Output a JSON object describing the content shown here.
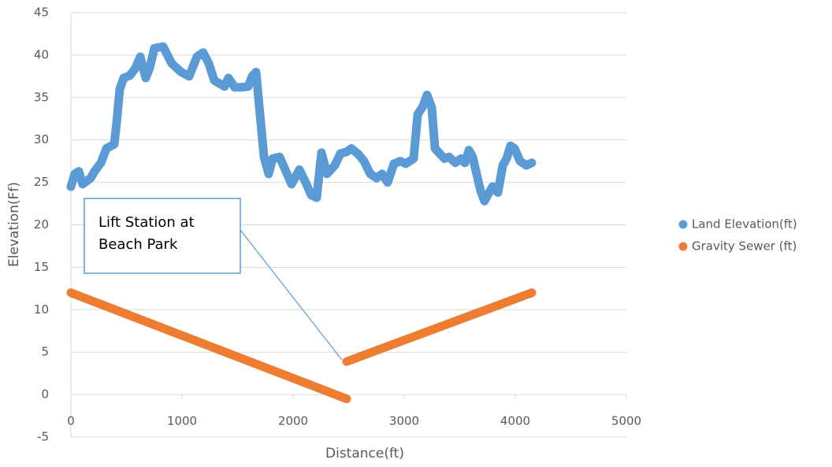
{
  "chart_data": {
    "type": "scatter",
    "x_label": "Distance(ft)",
    "y_label": "Elevation(Ff)",
    "xlim": [
      0,
      5000
    ],
    "xticks": [
      0,
      1000,
      2000,
      3000,
      4000,
      5000
    ],
    "ylim": [
      -5,
      45
    ],
    "yticks": [
      -5,
      0,
      5,
      10,
      15,
      20,
      25,
      30,
      35,
      40,
      45
    ],
    "grid": true,
    "legend": "right",
    "annotation": [
      "Lift Station at",
      "Beach Park"
    ],
    "series": [
      {
        "name": "Land Elevation(ft)",
        "color": "#5b9bd5",
        "x": [
          0,
          35,
          71,
          106,
          177,
          213,
          270,
          319,
          390,
          411,
          440,
          475,
          532,
          582,
          624,
          674,
          709,
          752,
          830,
          908,
          993,
          1064,
          1135,
          1191,
          1241,
          1291,
          1383,
          1418,
          1475,
          1532,
          1596,
          1631,
          1667,
          1702,
          1738,
          1780,
          1816,
          1879,
          1929,
          1986,
          2057,
          2113,
          2163,
          2213,
          2255,
          2305,
          2376,
          2426,
          2482,
          2525,
          2589,
          2638,
          2695,
          2752,
          2801,
          2851,
          2908,
          2965,
          3014,
          3085,
          3121,
          3170,
          3206,
          3248,
          3277,
          3362,
          3404,
          3461,
          3511,
          3546,
          3582,
          3617,
          3652,
          3688,
          3723,
          3794,
          3844,
          3887,
          3922,
          3957,
          3993,
          4043,
          4099,
          4149
        ],
        "values": [
          24.5,
          26,
          26.3,
          24.8,
          25.5,
          26.3,
          27.3,
          29,
          29.5,
          32,
          36,
          37.3,
          37.6,
          38.5,
          39.8,
          37.3,
          38.5,
          40.8,
          41,
          39,
          38,
          37.5,
          39.8,
          40.3,
          39,
          37,
          36.3,
          37.3,
          36.2,
          36.2,
          36.3,
          37.5,
          38,
          33,
          28,
          26,
          27.8,
          28,
          26.5,
          24.8,
          26.5,
          25,
          23.5,
          23.2,
          28.5,
          26,
          27,
          28.4,
          28.6,
          29,
          28.3,
          27.5,
          26,
          25.5,
          26,
          25,
          27.2,
          27.5,
          27.2,
          27.8,
          33,
          34,
          35.3,
          33.8,
          29,
          27.8,
          28,
          27.3,
          27.8,
          27.3,
          28.8,
          28,
          26,
          24,
          22.8,
          24.5,
          23.8,
          27,
          27.8,
          29.3,
          29,
          27.5,
          27,
          27.3
        ]
      },
      {
        "name": "Gravity Sewer (ft)",
        "color": "#ed7d31",
        "x": [
          0,
          2482,
          null,
          2482,
          4149
        ],
        "values": [
          12,
          -0.5,
          null,
          3.9,
          12
        ]
      }
    ]
  }
}
